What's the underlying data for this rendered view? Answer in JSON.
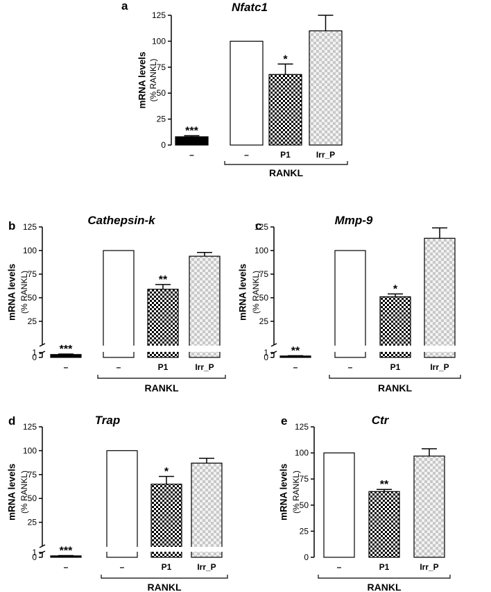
{
  "chart_data": [
    {
      "type": "bar",
      "panel": "a",
      "title": "Nfatc1",
      "ylabel": "mRNA levels",
      "ylabel_sub": "(% RANKL)",
      "ylim": [
        0,
        125
      ],
      "yticks": [
        "0",
        "25",
        "50",
        "75",
        "100",
        "125"
      ],
      "broken_axis": false,
      "categories": [
        "–",
        "–",
        "P1",
        "Irr_P"
      ],
      "values": [
        8,
        100,
        68,
        110
      ],
      "errors": [
        1,
        0,
        10,
        15
      ],
      "significance": [
        "***",
        "",
        "*",
        ""
      ],
      "fills": [
        "black",
        "white",
        "checker",
        "lightchecker"
      ],
      "group_label": "RANKL",
      "group_span": [
        1,
        3
      ]
    },
    {
      "type": "bar",
      "panel": "b",
      "title": "Cathepsin-k",
      "ylabel": "mRNA levels",
      "ylabel_sub": "(% RANKL)",
      "ylim": [
        0,
        125
      ],
      "yticks": [
        "0",
        "1",
        "25",
        "50",
        "75",
        "100",
        "125"
      ],
      "broken_axis": true,
      "categories": [
        "–",
        "–",
        "P1",
        "Irr_P"
      ],
      "values": [
        0.6,
        100,
        59,
        94
      ],
      "errors": [
        0.1,
        0,
        5,
        4
      ],
      "significance": [
        "***",
        "",
        "**",
        ""
      ],
      "fills": [
        "black",
        "white",
        "checker",
        "lightchecker"
      ],
      "group_label": "RANKL",
      "group_span": [
        1,
        3
      ]
    },
    {
      "type": "bar",
      "panel": "c",
      "title": "Mmp-9",
      "ylabel": "mRNA levels",
      "ylabel_sub": "(% RANKL)",
      "ylim": [
        0,
        125
      ],
      "yticks": [
        "0",
        "1",
        "25",
        "50",
        "75",
        "100",
        "125"
      ],
      "broken_axis": true,
      "categories": [
        "–",
        "–",
        "P1",
        "Irr_P"
      ],
      "values": [
        0.3,
        100,
        51,
        113
      ],
      "errors": [
        0.05,
        0,
        3,
        11
      ],
      "significance": [
        "**",
        "",
        "*",
        ""
      ],
      "fills": [
        "black",
        "white",
        "checker",
        "lightchecker"
      ],
      "group_label": "RANKL",
      "group_span": [
        1,
        3
      ]
    },
    {
      "type": "bar",
      "panel": "d",
      "title": "Trap",
      "ylabel": "mRNA levels",
      "ylabel_sub": "(% RANKL)",
      "ylim": [
        0,
        125
      ],
      "yticks": [
        "0",
        "1",
        "25",
        "50",
        "75",
        "100",
        "125"
      ],
      "broken_axis": true,
      "categories": [
        "–",
        "–",
        "P1",
        "Irr_P"
      ],
      "values": [
        0.3,
        100,
        65,
        87
      ],
      "errors": [
        0.05,
        0,
        8,
        5
      ],
      "significance": [
        "***",
        "",
        "*",
        ""
      ],
      "fills": [
        "black",
        "white",
        "checker",
        "lightchecker"
      ],
      "group_label": "RANKL",
      "group_span": [
        1,
        3
      ]
    },
    {
      "type": "bar",
      "panel": "e",
      "title": "Ctr",
      "ylabel": "mRNA levels",
      "ylabel_sub": "(% RANKL)",
      "ylim": [
        0,
        125
      ],
      "yticks": [
        "0",
        "25",
        "50",
        "75",
        "100",
        "125"
      ],
      "broken_axis": false,
      "categories": [
        "–",
        "P1",
        "Irr_P"
      ],
      "values": [
        100,
        63,
        97
      ],
      "errors": [
        0,
        2,
        7
      ],
      "significance": [
        "",
        "**",
        ""
      ],
      "fills": [
        "white",
        "checker",
        "lightchecker"
      ],
      "group_label": "RANKL",
      "group_span": [
        0,
        2
      ]
    }
  ],
  "colors": {
    "axis": "#000000",
    "bar_dark": "#000000",
    "checker_light_a": "#c8c8c8",
    "checker_light_b": "#f2f2f2"
  }
}
